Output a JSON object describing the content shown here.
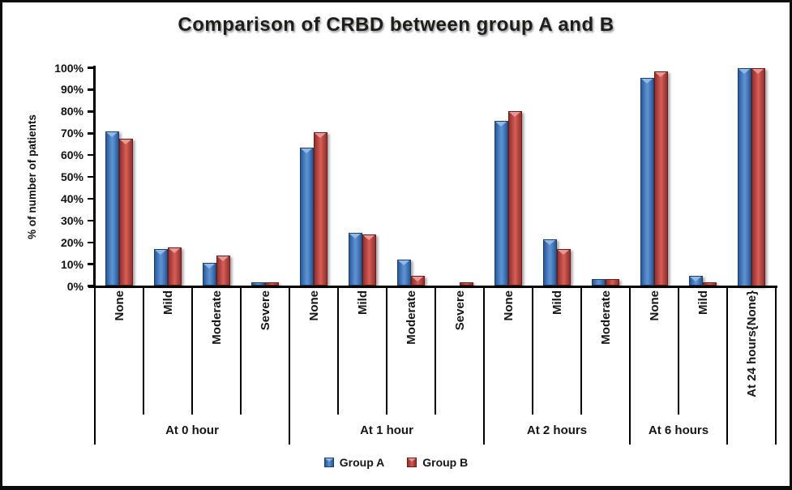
{
  "title": "Comparison of CRBD between group A and B",
  "y_axis_title": "% of number of patients",
  "legend": {
    "group_a": "Group A",
    "group_b": "Group B"
  },
  "colors": {
    "group_a": "#3f77ba",
    "group_b": "#c2433e",
    "axis": "#000000",
    "background": "#ffffff"
  },
  "chart_data": {
    "type": "bar",
    "title": "Comparison of CRBD between group A and B",
    "xlabel": "",
    "ylabel": "% of number of patients",
    "ylim": [
      0,
      100
    ],
    "y_tick_labels": [
      "0%",
      "10%",
      "20%",
      "30%",
      "40%",
      "50%",
      "60%",
      "70%",
      "80%",
      "90%",
      "100%"
    ],
    "grid": false,
    "legend_position": "bottom",
    "groups": [
      {
        "label": "At 0 hour",
        "categories": [
          "None",
          "Mild",
          "Moderate",
          "Severe"
        ]
      },
      {
        "label": "At 1 hour",
        "categories": [
          "None",
          "Mild",
          "Moderate",
          "Severe"
        ]
      },
      {
        "label": "At 2 hours",
        "categories": [
          "None",
          "Mild",
          "Moderate"
        ]
      },
      {
        "label": "At 6 hours",
        "categories": [
          "None",
          "Mild"
        ]
      },
      {
        "label": "",
        "categories": [
          "At 24 hours{None}"
        ]
      }
    ],
    "series": [
      {
        "name": "Group A",
        "color": "#3f77ba",
        "values": [
          71,
          17,
          10.5,
          1.5,
          63.5,
          24.5,
          12,
          0,
          75.5,
          21.5,
          3,
          95.5,
          4.5,
          100
        ]
      },
      {
        "name": "Group B",
        "color": "#c2433e",
        "values": [
          67.5,
          17.5,
          14,
          1.5,
          70.5,
          23.5,
          4.5,
          1.5,
          80,
          17,
          3,
          98.5,
          1.5,
          100
        ]
      }
    ]
  }
}
